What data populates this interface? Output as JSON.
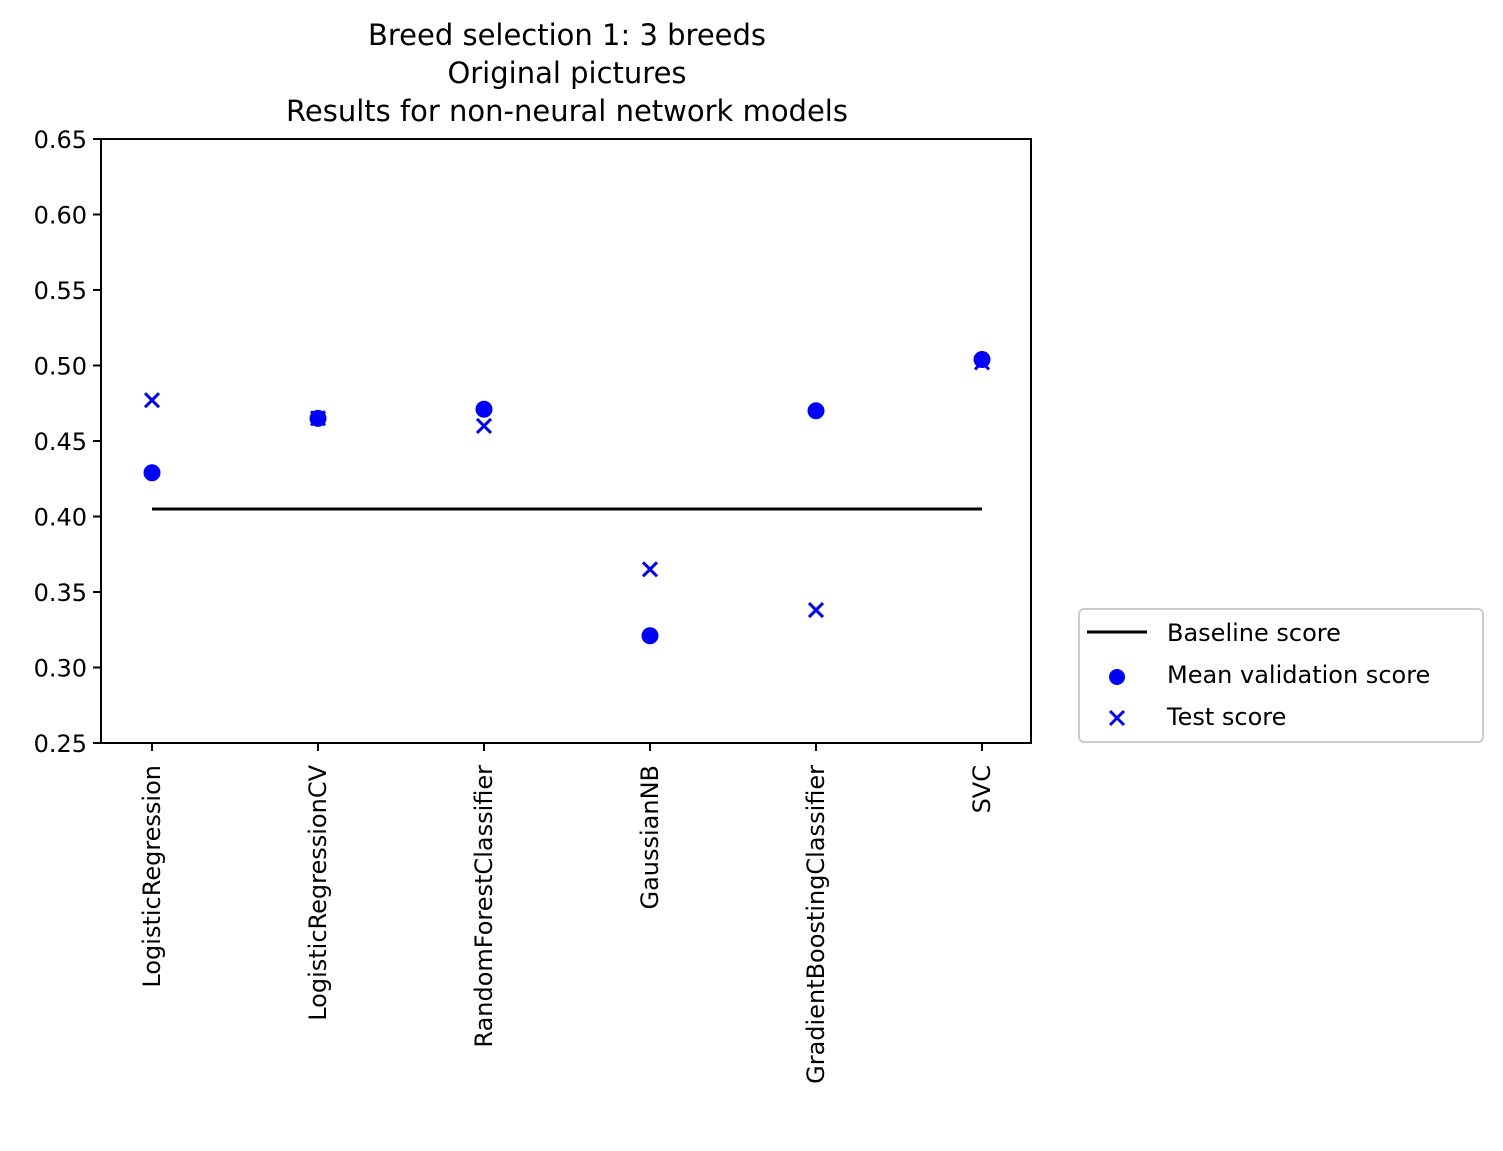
{
  "chart_data": {
    "type": "scatter",
    "title_lines": [
      "Breed selection 1: 3 breeds",
      "Original pictures",
      "Results for non-neural network models"
    ],
    "xlabel": "",
    "ylabel": "",
    "categories": [
      "LogisticRegression",
      "LogisticRegressionCV",
      "RandomForestClassifier",
      "GaussianNB",
      "GradientBoostingClassifier",
      "SVC"
    ],
    "ylim": [
      0.25,
      0.65
    ],
    "y_ticks": [
      "0.25",
      "0.30",
      "0.35",
      "0.40",
      "0.45",
      "0.50",
      "0.55",
      "0.60",
      "0.65"
    ],
    "grid": false,
    "legend_position": "outside right, lower",
    "baseline": {
      "name": "Baseline score",
      "value": 0.405,
      "color": "#000000"
    },
    "series": [
      {
        "name": "Mean validation score",
        "marker": "circle",
        "color": "#0000ff",
        "values": [
          0.429,
          0.465,
          0.471,
          0.321,
          0.47,
          0.504
        ]
      },
      {
        "name": "Test score",
        "marker": "x",
        "color": "#0000ff",
        "values": [
          0.477,
          0.465,
          0.46,
          0.365,
          0.338,
          0.502
        ]
      }
    ]
  }
}
